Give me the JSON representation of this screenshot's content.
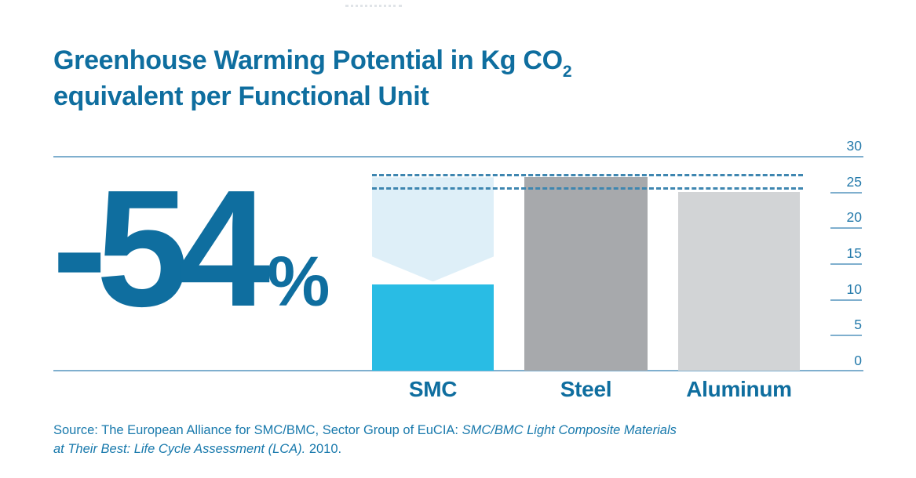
{
  "title": {
    "line1_main": "Greenhouse Warming Potential in Kg CO",
    "line1_subscript": "2",
    "line2": "equivalent per Functional Unit"
  },
  "highlight": {
    "number": "-54",
    "unit": "%"
  },
  "chart_data": {
    "type": "bar",
    "title": "Greenhouse Warming Potential in Kg CO2 equivalent per Functional Unit",
    "categories": [
      "SMC",
      "Steel",
      "Aluminum"
    ],
    "values": [
      12,
      27,
      25
    ],
    "ylabel": "Kg CO2 equivalent per functional unit",
    "ylim": [
      0,
      30
    ],
    "yticks": [
      30,
      25,
      20,
      15,
      10,
      5,
      0
    ],
    "axis_side": "right",
    "grid": "full-width rules at 0 and 30 only; short right-side tick marks at 5-25",
    "legend_position": "none",
    "reference_lines": {
      "steel_level": 27.3,
      "aluminum_level": 25.4
    },
    "ghost_indicator": {
      "category": "SMC",
      "from_value": 27,
      "to_value": 12,
      "meaning": "reduction of SMC vs. steel, arrow notch pointing down to actual SMC bar",
      "label": "-54%"
    },
    "bar_colors": [
      "#29BCE4",
      "#A7A9AC",
      "#D2D4D6"
    ]
  },
  "axis_tick_labels": [
    "30",
    "25",
    "20",
    "15",
    "10",
    "5",
    "0"
  ],
  "source": {
    "normal1": "Source: The European Alliance for SMC/BMC, Sector Group of EuCIA: ",
    "italic1": "SMC/BMC Light Composite Materials",
    "italic2": "at Their Best: Life Cycle Assessment (LCA).",
    "normal2": " 2010."
  },
  "colors": {
    "title_blue": "#0F6E9F",
    "accent_cyan": "#29BCE4",
    "ghost_blue": "#DEEFF8",
    "steel_gray": "#A7A9AC",
    "aluminum_gray": "#D2D4D6",
    "rule_blue": "#7FAFCE",
    "dashed_blue": "#3E86B0",
    "tick_label_blue": "#2379AA",
    "source_blue": "#1879AC"
  }
}
